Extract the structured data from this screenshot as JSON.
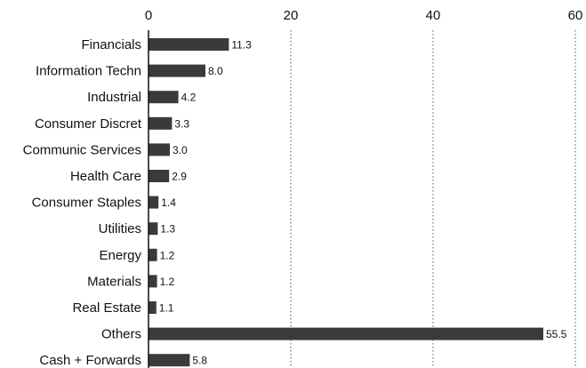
{
  "chart_data": {
    "type": "bar",
    "orientation": "horizontal",
    "title": "",
    "xlabel": "",
    "ylabel": "",
    "xlim": [
      0,
      60
    ],
    "xticks": [
      0,
      20,
      40,
      60
    ],
    "x_axis_position": "top",
    "grid": "vertical dotted",
    "bar_color": "#3a3a3a",
    "categories": [
      "Financials",
      "Information Techn",
      "Industrial",
      "Consumer Discret",
      "Communic Services",
      "Health Care",
      "Consumer Staples",
      "Utilities",
      "Energy",
      "Materials",
      "Real Estate",
      "Others",
      "Cash + Forwards"
    ],
    "values": [
      11.3,
      8.0,
      4.2,
      3.3,
      3.0,
      2.9,
      1.4,
      1.3,
      1.2,
      1.2,
      1.1,
      55.5,
      5.8
    ],
    "value_labels": [
      "11.3",
      "8.0",
      "4.2",
      "3.3",
      "3.0",
      "2.9",
      "1.4",
      "1.3",
      "1.2",
      "1.2",
      "1.1",
      "55.5",
      "5.8"
    ]
  }
}
